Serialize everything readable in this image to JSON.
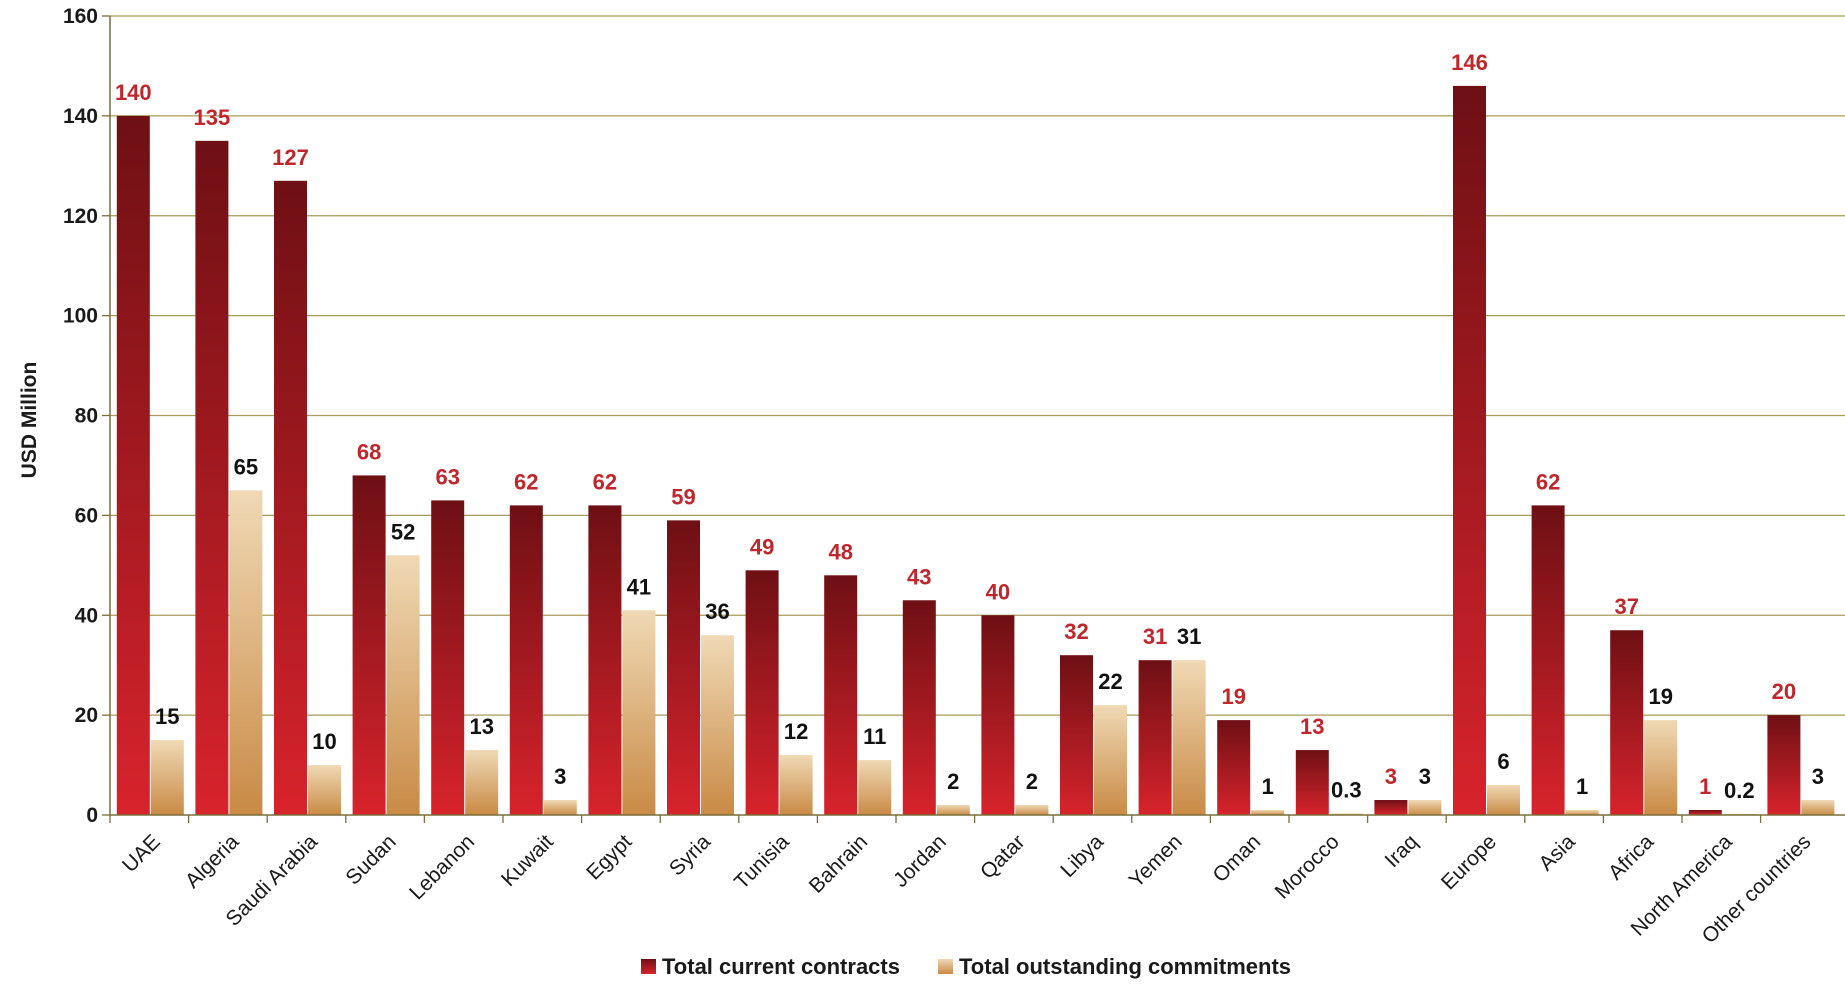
{
  "chart_data": {
    "type": "bar",
    "ylabel": "USD Million",
    "xlabel": "",
    "title": "",
    "ylim": [
      0,
      160
    ],
    "yticks": [
      0,
      20,
      40,
      60,
      80,
      100,
      120,
      140,
      160
    ],
    "grid": true,
    "legend_position": "bottom-center",
    "categories": [
      "UAE",
      "Algeria",
      "Saudi Arabia",
      "Sudan",
      "Lebanon",
      "Kuwait",
      "Egypt",
      "Syria",
      "Tunisia",
      "Bahrain",
      "Jordan",
      "Qatar",
      "Libya",
      "Yemen",
      "Oman",
      "Morocco",
      "Iraq",
      "Europe",
      "Asia",
      "Africa",
      "North America",
      "Other countries"
    ],
    "series": [
      {
        "name": "Total current contracts",
        "values": [
          140,
          135,
          127,
          68,
          63,
          62,
          62,
          59,
          49,
          48,
          43,
          40,
          32,
          31,
          19,
          13,
          3,
          146,
          62,
          37,
          1,
          20
        ],
        "labels": [
          "140",
          "135",
          "127",
          "68",
          "63",
          "62",
          "62",
          "59",
          "49",
          "48",
          "43",
          "40",
          "32",
          "31",
          "19",
          "13",
          "3",
          "146",
          "62",
          "37",
          "1",
          "20"
        ],
        "color_top": "#6e1014",
        "color_bottom": "#d8232c",
        "label_color": "#c0272d"
      },
      {
        "name": "Total outstanding commitments",
        "values": [
          15,
          65,
          10,
          52,
          13,
          3,
          41,
          36,
          12,
          11,
          2,
          2,
          22,
          31,
          1,
          0.3,
          3,
          6,
          1,
          19,
          0.2,
          3
        ],
        "labels": [
          "15",
          "65",
          "10",
          "52",
          "13",
          "3",
          "41",
          "36",
          "12",
          "11",
          "2",
          "2",
          "22",
          "31",
          "1",
          "0.3",
          "3",
          "6",
          "1",
          "19",
          "0.2",
          "3"
        ],
        "color_top": "#f0d9b5",
        "color_bottom": "#c98a45",
        "label_color": "#111111"
      }
    ],
    "colors": {
      "grid": "#a89a5a",
      "axis": "#7a6e3a"
    }
  }
}
